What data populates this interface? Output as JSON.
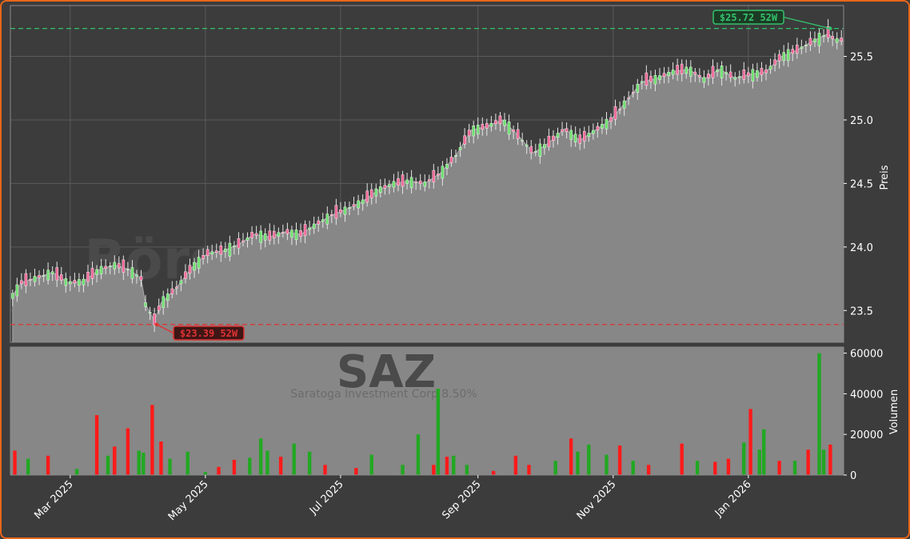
{
  "brand": {
    "watermark": "Börsensignale.trade",
    "ticker": "SAZ",
    "company": "Saratoga Investment Corp 8.50%"
  },
  "colors": {
    "frame": "#e8651a",
    "background": "#3c3c3c",
    "area": "#878787",
    "up": "#22a822",
    "down": "#ff1a1a",
    "high_line": "#33c26b",
    "low_line": "#e03333"
  },
  "chart_data": [
    {
      "type": "line",
      "title": "",
      "ylabel": "Preis",
      "ylim": [
        23.25,
        25.9
      ],
      "yticks": [
        "23.5",
        "24.0",
        "24.5",
        "25.0",
        "25.5"
      ],
      "xlim": [
        "2025-02-02",
        "2026-02-13"
      ],
      "xticks": [
        {
          "date": "2025-03-01",
          "label": "Mar 2025"
        },
        {
          "date": "2025-05-01",
          "label": "May 2025"
        },
        {
          "date": "2025-07-01",
          "label": "Jul 2025"
        },
        {
          "date": "2025-09-01",
          "label": "Sep 2025"
        },
        {
          "date": "2025-11-01",
          "label": "Nov 2025"
        },
        {
          "date": "2026-01-01",
          "label": "Jan 2026"
        }
      ],
      "series": [
        {
          "values": [
            [
              "2025-02-03",
              23.62
            ],
            [
              "2025-02-07",
              23.72
            ],
            [
              "2025-02-14",
              23.76
            ],
            [
              "2025-02-21",
              23.8
            ],
            [
              "2025-02-28",
              23.72
            ],
            [
              "2025-03-07",
              23.73
            ],
            [
              "2025-03-14",
              23.82
            ],
            [
              "2025-03-21",
              23.86
            ],
            [
              "2025-03-28",
              23.82
            ],
            [
              "2025-04-02",
              23.75
            ],
            [
              "2025-04-04",
              23.55
            ],
            [
              "2025-04-08",
              23.42
            ],
            [
              "2025-04-11",
              23.56
            ],
            [
              "2025-04-18",
              23.68
            ],
            [
              "2025-04-25",
              23.84
            ],
            [
              "2025-05-02",
              23.95
            ],
            [
              "2025-05-09",
              23.97
            ],
            [
              "2025-05-16",
              24.02
            ],
            [
              "2025-05-23",
              24.1
            ],
            [
              "2025-05-30",
              24.08
            ],
            [
              "2025-06-06",
              24.12
            ],
            [
              "2025-06-13",
              24.1
            ],
            [
              "2025-06-20",
              24.18
            ],
            [
              "2025-06-27",
              24.25
            ],
            [
              "2025-07-04",
              24.3
            ],
            [
              "2025-07-11",
              24.36
            ],
            [
              "2025-07-18",
              24.45
            ],
            [
              "2025-07-25",
              24.5
            ],
            [
              "2025-08-01",
              24.52
            ],
            [
              "2025-08-08",
              24.5
            ],
            [
              "2025-08-15",
              24.58
            ],
            [
              "2025-08-22",
              24.72
            ],
            [
              "2025-08-29",
              24.92
            ],
            [
              "2025-09-05",
              24.95
            ],
            [
              "2025-09-12",
              25.0
            ],
            [
              "2025-09-19",
              24.88
            ],
            [
              "2025-09-26",
              24.74
            ],
            [
              "2025-10-03",
              24.82
            ],
            [
              "2025-10-10",
              24.93
            ],
            [
              "2025-10-17",
              24.84
            ],
            [
              "2025-10-24",
              24.92
            ],
            [
              "2025-10-31",
              25.0
            ],
            [
              "2025-11-07",
              25.15
            ],
            [
              "2025-11-14",
              25.3
            ],
            [
              "2025-11-21",
              25.33
            ],
            [
              "2025-11-28",
              25.38
            ],
            [
              "2025-12-05",
              25.4
            ],
            [
              "2025-12-12",
              25.32
            ],
            [
              "2025-12-19",
              25.4
            ],
            [
              "2025-12-26",
              25.33
            ],
            [
              "2026-01-02",
              25.36
            ],
            [
              "2026-01-09",
              25.38
            ],
            [
              "2026-01-16",
              25.5
            ],
            [
              "2026-01-23",
              25.55
            ],
            [
              "2026-01-30",
              25.62
            ],
            [
              "2026-02-06",
              25.68
            ],
            [
              "2026-02-09",
              25.63
            ],
            [
              "2026-02-13",
              25.63
            ]
          ]
        }
      ],
      "annotations": [
        {
          "label": "$25.72 52W",
          "date": "2026-02-07",
          "value": 25.72,
          "kind": "high"
        },
        {
          "label": "$23.39 52W",
          "date": "2025-04-09",
          "value": 23.39,
          "kind": "low"
        }
      ]
    },
    {
      "type": "bar",
      "title": "",
      "ylabel": "Volumen",
      "ylim": [
        0,
        63000
      ],
      "yticks": [
        "0",
        "20000",
        "40000",
        "60000"
      ],
      "series": [
        {
          "name": "",
          "values": [
            [
              "2025-02-04",
              12000,
              "down"
            ],
            [
              "2025-02-10",
              8000,
              "up"
            ],
            [
              "2025-02-19",
              9500,
              "down"
            ],
            [
              "2025-03-04",
              3000,
              "up"
            ],
            [
              "2025-03-13",
              29500,
              "down"
            ],
            [
              "2025-03-18",
              9500,
              "up"
            ],
            [
              "2025-03-21",
              14000,
              "down"
            ],
            [
              "2025-03-27",
              23000,
              "down"
            ],
            [
              "2025-04-01",
              12000,
              "up"
            ],
            [
              "2025-04-03",
              11000,
              "up"
            ],
            [
              "2025-04-07",
              34500,
              "down"
            ],
            [
              "2025-04-11",
              16500,
              "down"
            ],
            [
              "2025-04-15",
              8000,
              "up"
            ],
            [
              "2025-04-23",
              11500,
              "up"
            ],
            [
              "2025-05-01",
              1500,
              "up"
            ],
            [
              "2025-05-07",
              4000,
              "down"
            ],
            [
              "2025-05-14",
              7500,
              "down"
            ],
            [
              "2025-05-21",
              8500,
              "up"
            ],
            [
              "2025-05-26",
              18000,
              "up"
            ],
            [
              "2025-05-29",
              12000,
              "up"
            ],
            [
              "2025-06-04",
              9000,
              "down"
            ],
            [
              "2025-06-10",
              15500,
              "up"
            ],
            [
              "2025-06-17",
              11500,
              "up"
            ],
            [
              "2025-06-24",
              5000,
              "down"
            ],
            [
              "2025-07-08",
              3500,
              "down"
            ],
            [
              "2025-07-15",
              10000,
              "up"
            ],
            [
              "2025-07-29",
              5000,
              "up"
            ],
            [
              "2025-08-05",
              20000,
              "up"
            ],
            [
              "2025-08-12",
              5000,
              "down"
            ],
            [
              "2025-08-14",
              42500,
              "up"
            ],
            [
              "2025-08-18",
              9000,
              "down"
            ],
            [
              "2025-08-21",
              9500,
              "up"
            ],
            [
              "2025-08-27",
              5000,
              "up"
            ],
            [
              "2025-09-08",
              2000,
              "down"
            ],
            [
              "2025-09-18",
              9500,
              "down"
            ],
            [
              "2025-09-24",
              5000,
              "down"
            ],
            [
              "2025-10-06",
              7000,
              "up"
            ],
            [
              "2025-10-13",
              18000,
              "down"
            ],
            [
              "2025-10-16",
              11500,
              "up"
            ],
            [
              "2025-10-21",
              15000,
              "up"
            ],
            [
              "2025-10-29",
              10000,
              "up"
            ],
            [
              "2025-11-04",
              14500,
              "down"
            ],
            [
              "2025-11-10",
              7000,
              "up"
            ],
            [
              "2025-11-17",
              5000,
              "down"
            ],
            [
              "2025-12-02",
              15500,
              "down"
            ],
            [
              "2025-12-09",
              7000,
              "up"
            ],
            [
              "2025-12-17",
              6500,
              "down"
            ],
            [
              "2025-12-23",
              8000,
              "down"
            ],
            [
              "2025-12-30",
              16000,
              "up"
            ],
            [
              "2026-01-02",
              32500,
              "down"
            ],
            [
              "2026-01-06",
              12500,
              "up"
            ],
            [
              "2026-01-08",
              22500,
              "up"
            ],
            [
              "2026-01-15",
              7000,
              "down"
            ],
            [
              "2026-01-22",
              7000,
              "up"
            ],
            [
              "2026-01-28",
              12500,
              "down"
            ],
            [
              "2026-02-02",
              60000,
              "up"
            ],
            [
              "2026-02-04",
              12500,
              "up"
            ],
            [
              "2026-02-07",
              15000,
              "down"
            ]
          ]
        }
      ]
    }
  ]
}
